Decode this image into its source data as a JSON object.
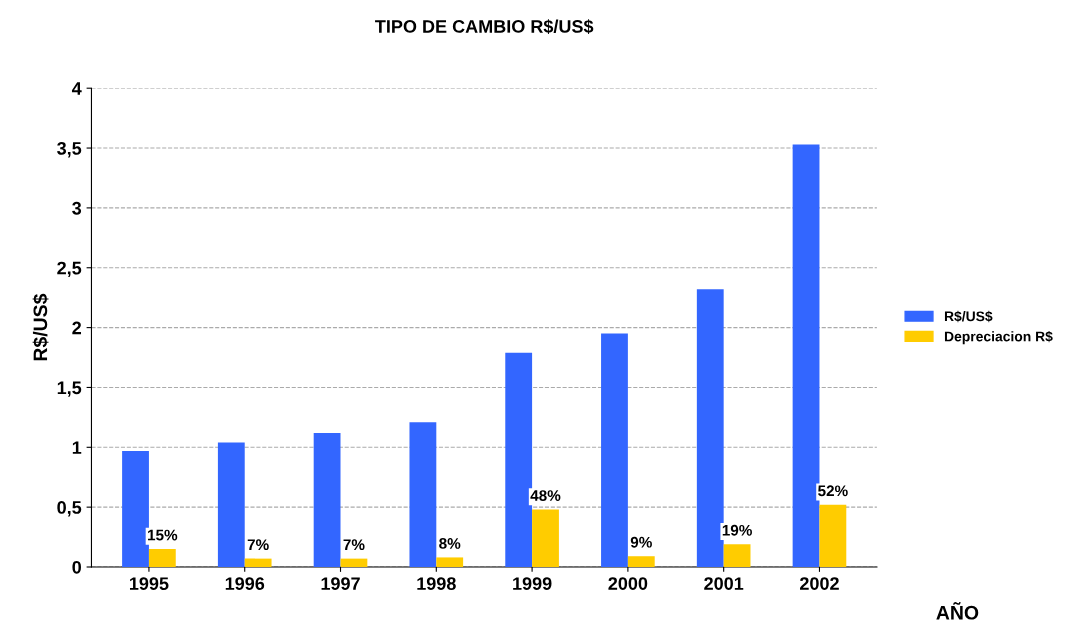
{
  "chart_data": {
    "type": "bar",
    "title": "TIPO DE CAMBIO R$/US$",
    "xlabel": "AÑO",
    "ylabel": "R$/US$",
    "categories": [
      "1995",
      "1996",
      "1997",
      "1998",
      "1999",
      "2000",
      "2001",
      "2002"
    ],
    "series": [
      {
        "name": "R$/US$",
        "color": "#3366ff",
        "values": [
          0.97,
          1.04,
          1.12,
          1.21,
          1.79,
          1.95,
          2.32,
          3.53
        ]
      },
      {
        "name": "Depreciacion R$",
        "color": "#ffcc00",
        "values": [
          0.15,
          0.07,
          0.07,
          0.08,
          0.48,
          0.09,
          0.19,
          0.52
        ],
        "value_labels": [
          "15%",
          "7%",
          "7%",
          "8%",
          "48%",
          "9%",
          "19%",
          "52%"
        ]
      }
    ],
    "ylim": [
      0,
      4
    ],
    "yticks": [
      0,
      {
        "value": 0.5,
        "label": "0,5"
      },
      1,
      {
        "value": 1.5,
        "label": "1,5"
      },
      2,
      {
        "value": 2.5,
        "label": "2,5"
      },
      3,
      {
        "value": 3.5,
        "label": "3,5"
      },
      4
    ],
    "grid": "y",
    "legend": "right"
  }
}
